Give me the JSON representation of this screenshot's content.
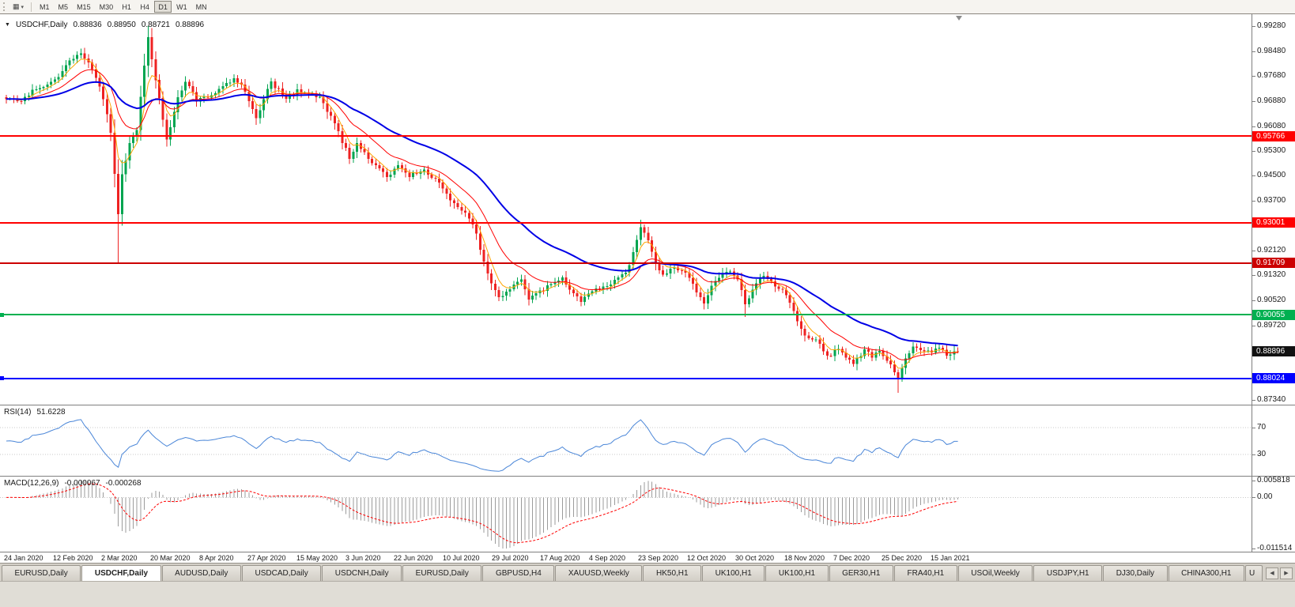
{
  "icons": {
    "chart_menu": "▼",
    "chart_type_glyph": "▦",
    "charts_dropdown": "▾",
    "tab_scroll_left": "◀",
    "tab_scroll_right": "▶"
  },
  "toolbar": {
    "timeframes": [
      "M1",
      "M5",
      "M15",
      "M30",
      "H1",
      "H4",
      "D1",
      "W1",
      "MN"
    ],
    "active_timeframe": "D1"
  },
  "chart": {
    "title": {
      "symbol": "USDCHF,Daily",
      "open": "0.88836",
      "high": "0.88950",
      "low": "0.88721",
      "close": "0.88896"
    },
    "price_axis": {
      "max": 0.9928,
      "min": 0.8734,
      "labels": [
        "0.99280",
        "0.98480",
        "0.97680",
        "0.96880",
        "0.96080",
        "0.95300",
        "0.94500",
        "0.93700",
        "0.92900",
        "0.92120",
        "0.91320",
        "0.90520",
        "0.89720",
        "0.87340"
      ]
    },
    "hlines": [
      {
        "price": 0.95766,
        "label": "0.95766",
        "color": "#ff0000",
        "thickness": 2,
        "handle": false
      },
      {
        "price": 0.93001,
        "label": "0.93001",
        "color": "#ff0000",
        "thickness": 2,
        "handle": false
      },
      {
        "price": 0.91709,
        "label": "0.91709",
        "color": "#cc0000",
        "thickness": 2,
        "handle": false
      },
      {
        "price": 0.90055,
        "label": "0.90055",
        "color": "#00b050",
        "thickness": 2,
        "handle": true
      },
      {
        "price": 0.88024,
        "label": "0.88024",
        "color": "#0000ff",
        "thickness": 2,
        "handle": true
      }
    ],
    "current_price": {
      "value": 0.88896,
      "label": "0.88896",
      "tag_bg": "#111111"
    },
    "time_axis": [
      "24 Jan 2020",
      "12 Feb 2020",
      "2 Mar 2020",
      "20 Mar 2020",
      "8 Apr 2020",
      "27 Apr 2020",
      "15 May 2020",
      "3 Jun 2020",
      "22 Jun 2020",
      "10 Jul 2020",
      "29 Jul 2020",
      "17 Aug 2020",
      "4 Sep 2020",
      "23 Sep 2020",
      "12 Oct 2020",
      "30 Oct 2020",
      "18 Nov 2020",
      "7 Dec 2020",
      "25 Dec 2020",
      "15 Jan 2021"
    ],
    "colors": {
      "up": "#00a550",
      "down": "#ee2222",
      "ma_fast": "#ffa500",
      "ma_mid": "#ff0000",
      "ma_slow": "#0000e6",
      "rsi": "#4a86d8",
      "macd_hist": "#9b9b9b",
      "macd_signal": "#ff0000",
      "level_dotted": "#c8c8c8",
      "axis_text": "#1a1a1a"
    }
  },
  "chart_data": {
    "type": "candlestick",
    "symbol": "USDCHF",
    "timeframe": "Daily",
    "first_date": "24 Jan 2020",
    "last_date": "15 Jan 2021",
    "current_ohlc": {
      "open": 0.88836,
      "high": 0.8895,
      "low": 0.88721,
      "close": 0.88896
    },
    "support_resistance_levels": [
      0.95766,
      0.93001,
      0.91709,
      0.90055,
      0.88024
    ],
    "num_candles": 256,
    "last_close": 0.88896,
    "price_path": [
      [
        0,
        0.9695
      ],
      [
        4,
        0.9685
      ],
      [
        7,
        0.972
      ],
      [
        11,
        0.9745
      ],
      [
        14,
        0.976
      ],
      [
        17,
        0.9815
      ],
      [
        19,
        0.984
      ],
      [
        21,
        0.983
      ],
      [
        23,
        0.9792
      ],
      [
        26,
        0.97
      ],
      [
        28,
        0.9585
      ],
      [
        30,
        0.933
      ],
      [
        31,
        0.945
      ],
      [
        33,
        0.955
      ],
      [
        35,
        0.96
      ],
      [
        37,
        0.98
      ],
      [
        38,
        0.989
      ],
      [
        40,
        0.976
      ],
      [
        42,
        0.9635
      ],
      [
        43,
        0.956
      ],
      [
        46,
        0.97
      ],
      [
        48,
        0.9755
      ],
      [
        51,
        0.969
      ],
      [
        54,
        0.97
      ],
      [
        58,
        0.973
      ],
      [
        61,
        0.9765
      ],
      [
        64,
        0.9725
      ],
      [
        67,
        0.963
      ],
      [
        69,
        0.97
      ],
      [
        71,
        0.9745
      ],
      [
        75,
        0.97
      ],
      [
        78,
        0.972
      ],
      [
        81,
        0.9715
      ],
      [
        84,
        0.97
      ],
      [
        87,
        0.964
      ],
      [
        90,
        0.956
      ],
      [
        92,
        0.951
      ],
      [
        94,
        0.9555
      ],
      [
        96,
        0.9525
      ],
      [
        99,
        0.948
      ],
      [
        102,
        0.9445
      ],
      [
        105,
        0.948
      ],
      [
        108,
        0.945
      ],
      [
        112,
        0.9465
      ],
      [
        115,
        0.944
      ],
      [
        117,
        0.941
      ],
      [
        119,
        0.9375
      ],
      [
        122,
        0.934
      ],
      [
        125,
        0.93
      ],
      [
        128,
        0.918
      ],
      [
        130,
        0.9105
      ],
      [
        132,
        0.906
      ],
      [
        135,
        0.909
      ],
      [
        138,
        0.912
      ],
      [
        140,
        0.906
      ],
      [
        142,
        0.9075
      ],
      [
        146,
        0.91
      ],
      [
        149,
        0.9125
      ],
      [
        151,
        0.909
      ],
      [
        154,
        0.905
      ],
      [
        157,
        0.908
      ],
      [
        160,
        0.9095
      ],
      [
        162,
        0.9105
      ],
      [
        166,
        0.914
      ],
      [
        168,
        0.92
      ],
      [
        170,
        0.929
      ],
      [
        172,
        0.924
      ],
      [
        174,
        0.9165
      ],
      [
        176,
        0.913
      ],
      [
        179,
        0.9155
      ],
      [
        182,
        0.914
      ],
      [
        185,
        0.908
      ],
      [
        187,
        0.904
      ],
      [
        189,
        0.9105
      ],
      [
        191,
        0.913
      ],
      [
        194,
        0.9145
      ],
      [
        196,
        0.912
      ],
      [
        198,
        0.904
      ],
      [
        201,
        0.9105
      ],
      [
        203,
        0.913
      ],
      [
        206,
        0.91
      ],
      [
        208,
        0.909
      ],
      [
        211,
        0.902
      ],
      [
        213,
        0.896
      ],
      [
        215,
        0.8925
      ],
      [
        218,
        0.892
      ],
      [
        220,
        0.887
      ],
      [
        223,
        0.89
      ],
      [
        225,
        0.887
      ],
      [
        227,
        0.8845
      ],
      [
        230,
        0.8895
      ],
      [
        232,
        0.887
      ],
      [
        234,
        0.889
      ],
      [
        237,
        0.885
      ],
      [
        239,
        0.88
      ],
      [
        241,
        0.887
      ],
      [
        243,
        0.8905
      ],
      [
        245,
        0.8895
      ],
      [
        248,
        0.8885
      ],
      [
        250,
        0.89
      ],
      [
        252,
        0.888
      ],
      [
        255,
        0.88896
      ]
    ],
    "wick_extremes": {
      "30": {
        "low": 0.917
      },
      "38": {
        "high": 0.9928
      },
      "170": {
        "high": 0.931
      },
      "198": {
        "low": 0.8999
      },
      "239": {
        "low": 0.8757
      }
    },
    "indicators": [
      {
        "name": "RSI",
        "period": 14,
        "current": 51.6228,
        "levels": [
          70,
          30
        ]
      },
      {
        "name": "MACD",
        "params": [
          12,
          26,
          9
        ],
        "current_main": -6.7e-05,
        "current_signal": -0.000268
      }
    ]
  },
  "rsi": {
    "name": "RSI(14)",
    "value": "51.6228",
    "levels": [
      70,
      30
    ],
    "axis_labels": [
      "70",
      "30"
    ]
  },
  "macd": {
    "name": "MACD(12,26,9)",
    "value_main": "-0.000067",
    "value_signal": "-0.000268",
    "axis_labels": [
      "0.005818",
      "0.00",
      "-0.011514"
    ]
  },
  "tabs": {
    "active_index": 1,
    "items": [
      "EURUSD,Daily",
      "USDCHF,Daily",
      "AUDUSD,Daily",
      "USDCAD,Daily",
      "USDCNH,Daily",
      "EURUSD,Daily",
      "GBPUSD,H4",
      "XAUUSD,Weekly",
      "HK50,H1",
      "UK100,H1",
      "UK100,H1",
      "GER30,H1",
      "FRA40,H1",
      "USOil,Weekly",
      "USDJPY,H1",
      "DJ30,Daily",
      "CHINA300,H1",
      "U"
    ]
  }
}
